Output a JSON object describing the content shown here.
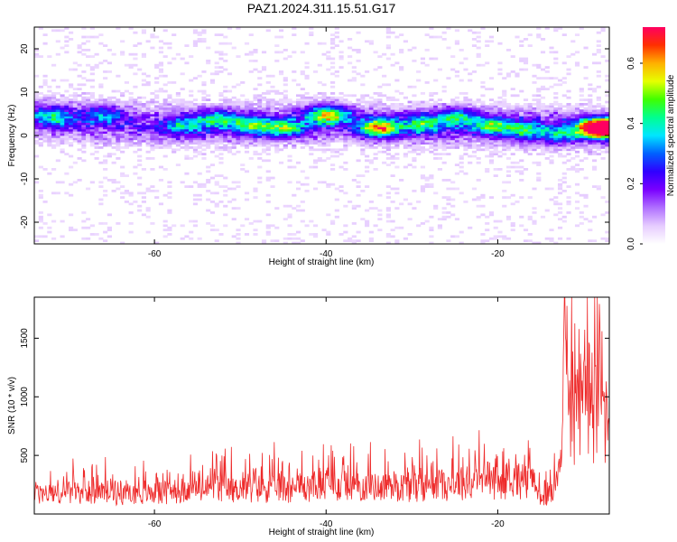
{
  "title": "PAZ1.2024.311.15.51.G17",
  "colors": {
    "snr_line": "#ee2a2a",
    "colormap": [
      "#ffffff",
      "#e6ccff",
      "#b070ff",
      "#7a00ff",
      "#3000ff",
      "#0060ff",
      "#00e6ff",
      "#00ff90",
      "#40ff00",
      "#e6ff00",
      "#ffb000",
      "#ff3000",
      "#ff0060"
    ]
  },
  "chart_data": [
    {
      "type": "heatmap",
      "title": "PAZ1.2024.311.15.51.G17",
      "xlabel": "Height of straight line (km)",
      "ylabel": "Frequency (Hz)",
      "xlim": [
        -74,
        -7
      ],
      "ylim": [
        -25,
        25
      ],
      "x_ticks": [
        -60,
        -40,
        -20
      ],
      "y_ticks": [
        -20,
        -10,
        0,
        10,
        20
      ],
      "colorbar": {
        "label": "Normalized spectral amplitude",
        "range": [
          0,
          0.72
        ],
        "ticks": [
          0.0,
          0.2,
          0.4,
          0.6
        ]
      },
      "ridge": {
        "x": [
          -74,
          -60,
          -40,
          -30,
          -20,
          -10,
          -7
        ],
        "freq": [
          4,
          2,
          3,
          2,
          2,
          1.5,
          1.5
        ]
      },
      "peaks": [
        {
          "x": -72,
          "y": 4,
          "amp": 0.25
        },
        {
          "x": -66,
          "y": 4.5,
          "amp": 0.18
        },
        {
          "x": -57,
          "y": 2,
          "amp": 0.22
        },
        {
          "x": -53,
          "y": 3.5,
          "amp": 0.28
        },
        {
          "x": -49,
          "y": 2,
          "amp": 0.3
        },
        {
          "x": -45,
          "y": 1.5,
          "amp": 0.34
        },
        {
          "x": -40,
          "y": 4.5,
          "amp": 0.45
        },
        {
          "x": -34,
          "y": 1.5,
          "amp": 0.5
        },
        {
          "x": -29,
          "y": 2.5,
          "amp": 0.3
        },
        {
          "x": -25,
          "y": 4,
          "amp": 0.28
        },
        {
          "x": -21,
          "y": 2,
          "amp": 0.3
        },
        {
          "x": -17,
          "y": 1,
          "amp": 0.28
        },
        {
          "x": -13,
          "y": 0,
          "amp": 0.22
        },
        {
          "x": -9,
          "y": 1.5,
          "amp": 0.45
        },
        {
          "x": -7.5,
          "y": 1.5,
          "amp": 0.72
        }
      ]
    },
    {
      "type": "line",
      "xlabel": "Height of straight line (km)",
      "ylabel": "SNR (10 * v/v)",
      "xlim": [
        -74,
        -7
      ],
      "ylim": [
        0,
        1850
      ],
      "x_ticks": [
        -60,
        -40,
        -20
      ],
      "y_ticks": [
        500,
        1000,
        1500
      ],
      "baseline_profile": {
        "x": [
          -74,
          -60,
          -52,
          -45,
          -38,
          -30,
          -22,
          -16,
          -15,
          -13.5,
          -12,
          -10,
          -8,
          -7
        ],
        "snr": [
          160,
          170,
          200,
          210,
          230,
          220,
          260,
          280,
          120,
          160,
          800,
          900,
          850,
          700
        ]
      },
      "peak": {
        "x": -12.2,
        "snr": 1850
      }
    }
  ]
}
